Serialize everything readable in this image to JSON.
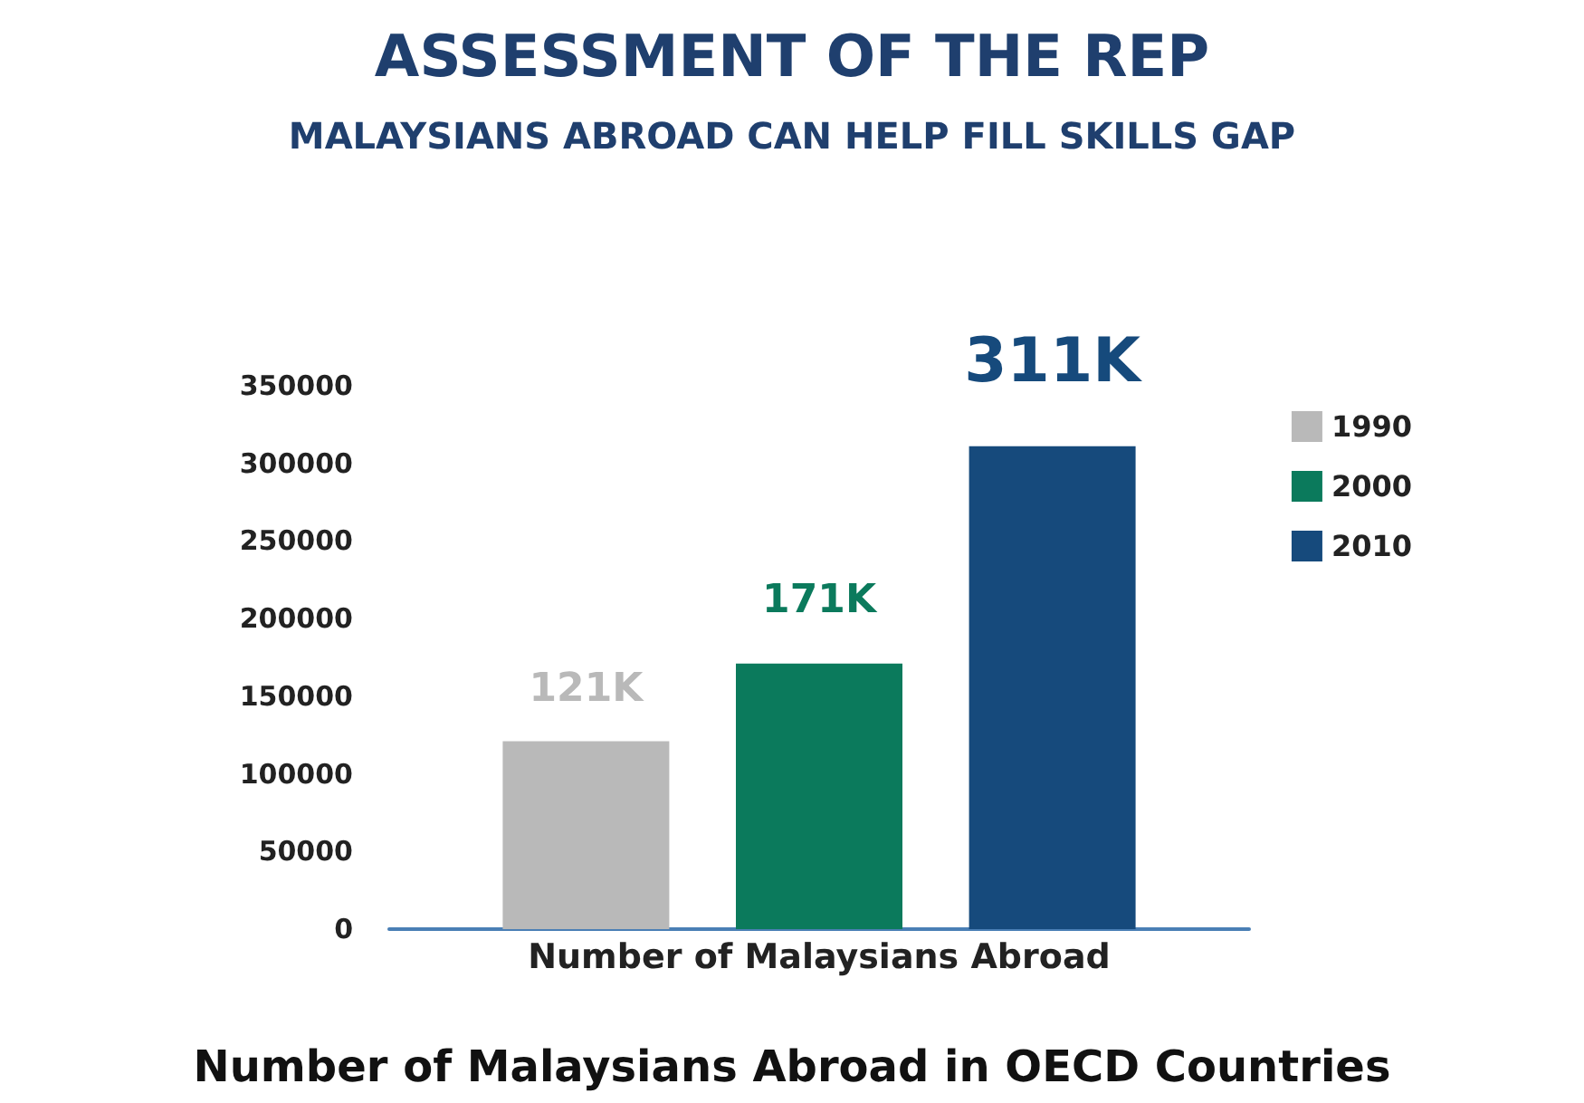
{
  "chart_data": {
    "type": "bar",
    "title": "ASSESSMENT OF THE REP",
    "subtitle": "MALAYSIANS ABROAD CAN HELP FILL SKILLS GAP",
    "categories": [
      "Number of Malaysians Abroad"
    ],
    "series": [
      {
        "name": "1990",
        "color": "#b9b9b9",
        "values": [
          121000
        ],
        "value_labels": [
          "121K"
        ]
      },
      {
        "name": "2000",
        "color": "#0b7a5c",
        "values": [
          171000
        ],
        "value_labels": [
          "171K"
        ]
      },
      {
        "name": "2010",
        "color": "#164a7c",
        "values": [
          311000
        ],
        "value_labels": [
          "311K"
        ]
      }
    ],
    "ylim": [
      0,
      350000
    ],
    "yticks": [
      0,
      50000,
      100000,
      150000,
      200000,
      250000,
      300000,
      350000
    ],
    "grid": false,
    "legend": "top right",
    "annotations": [
      "Number of Malaysians Abroad in OECD Countries"
    ]
  }
}
